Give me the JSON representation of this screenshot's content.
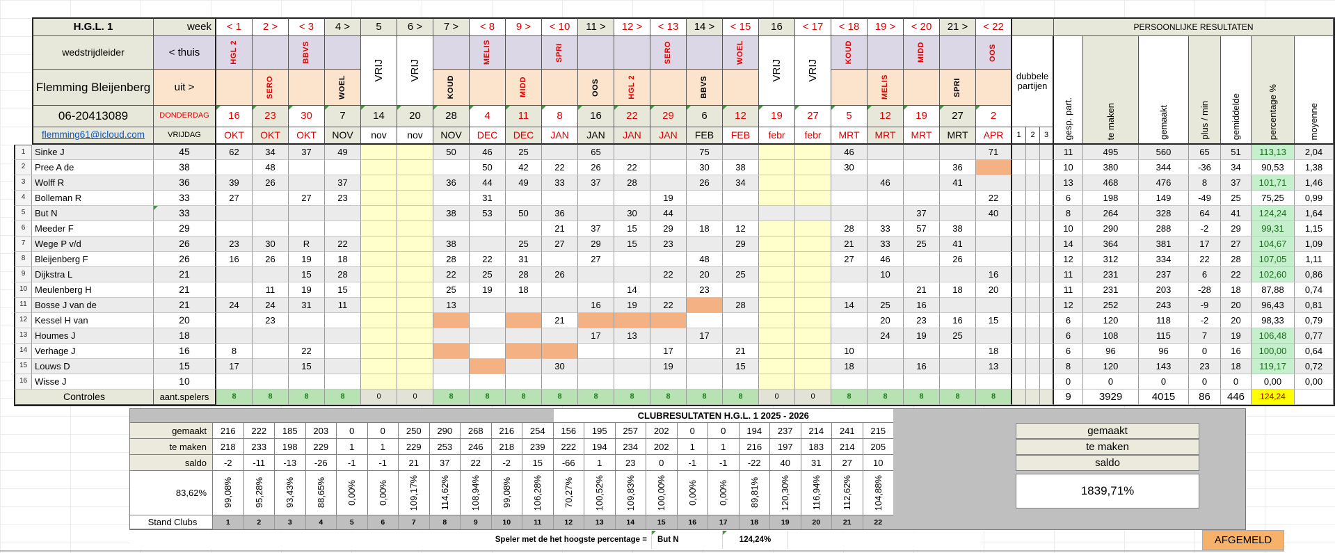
{
  "header": {
    "league": "H.G.L. 1",
    "role_label": "wedstrijdleider",
    "leader_name": "Flemming Bleijenberg",
    "phone": "06-20413089",
    "email": "flemming61@icloud.com",
    "week_label": "week",
    "home_label": "< thuis",
    "away_label": "uit >",
    "thursday_label": "DONDERDAG",
    "friday_label": "VRIJDAG",
    "vrij_label": "VRIJ",
    "personal_results_title": "PERSOONLIJKE RESULTATEN",
    "double_matches_label": "dubbele partijen",
    "double_cols": [
      "1",
      "2",
      "3"
    ],
    "result_columns": [
      "gesp. part.",
      "te maken",
      "gemaakt",
      "plus / min",
      "gemiddelde",
      "percentage %",
      "moyenne"
    ]
  },
  "colors": {
    "red_text": "#e00000",
    "beige": "#e8e8da",
    "home_lavender": "#dbd7e6",
    "away_peach": "#fbe3cc",
    "free_yellow": "#ffffcc",
    "orange_cell": "#f4b183",
    "good_green": "#c6efce",
    "control_green": "#b9e2b4",
    "total_yellow": "#ffff00",
    "grey_band": "#bfbfbf",
    "email_blue": "#0b55c4",
    "afgemeld_orange": "#f6b26b"
  },
  "weeks": [
    {
      "n": "< 1",
      "nr": true,
      "ns": false,
      "h": "HGL 2",
      "a": "",
      "cr": true,
      "v": false,
      "d": "16",
      "dr": true,
      "ds": false,
      "m": "OKT",
      "mr": true,
      "ms": false
    },
    {
      "n": "2 >",
      "nr": true,
      "ns": false,
      "h": "",
      "a": "SERO",
      "cr": true,
      "v": false,
      "d": "23",
      "dr": true,
      "ds": true,
      "m": "OKT",
      "mr": true,
      "ms": true
    },
    {
      "n": "< 3",
      "nr": true,
      "ns": false,
      "h": "BBVS",
      "a": "",
      "cr": true,
      "v": false,
      "d": "30",
      "dr": true,
      "ds": false,
      "m": "OKT",
      "mr": true,
      "ms": false
    },
    {
      "n": "4 >",
      "nr": false,
      "ns": true,
      "h": "",
      "a": "WOEL",
      "cr": false,
      "v": false,
      "d": "7",
      "dr": false,
      "ds": true,
      "m": "NOV",
      "mr": false,
      "ms": true
    },
    {
      "n": "5",
      "nr": false,
      "ns": true,
      "h": "",
      "a": "",
      "cr": false,
      "v": true,
      "d": "14",
      "dr": false,
      "ds": true,
      "m": "nov",
      "mr": false,
      "ms": false
    },
    {
      "n": "6 >",
      "nr": false,
      "ns": true,
      "h": "",
      "a": "",
      "cr": false,
      "v": true,
      "d": "20",
      "dr": false,
      "ds": true,
      "m": "nov",
      "mr": false,
      "ms": false
    },
    {
      "n": "7 >",
      "nr": false,
      "ns": true,
      "h": "",
      "a": "KOUD",
      "cr": false,
      "v": false,
      "d": "28",
      "dr": false,
      "ds": true,
      "m": "NOV",
      "mr": false,
      "ms": true
    },
    {
      "n": "< 8",
      "nr": true,
      "ns": false,
      "h": "MELIS",
      "a": "",
      "cr": true,
      "v": false,
      "d": "4",
      "dr": true,
      "ds": false,
      "m": "DEC",
      "mr": true,
      "ms": false
    },
    {
      "n": "9 >",
      "nr": true,
      "ns": false,
      "h": "",
      "a": "MIDD",
      "cr": true,
      "v": false,
      "d": "11",
      "dr": true,
      "ds": true,
      "m": "DEC",
      "mr": true,
      "ms": true
    },
    {
      "n": "< 10",
      "nr": true,
      "ns": false,
      "h": "SPRI",
      "a": "",
      "cr": true,
      "v": false,
      "d": "8",
      "dr": true,
      "ds": false,
      "m": "JAN",
      "mr": true,
      "ms": false
    },
    {
      "n": "11 >",
      "nr": false,
      "ns": true,
      "h": "",
      "a": "OOS",
      "cr": false,
      "v": false,
      "d": "16",
      "dr": false,
      "ds": true,
      "m": "JAN",
      "mr": false,
      "ms": true
    },
    {
      "n": "12 >",
      "nr": true,
      "ns": false,
      "h": "",
      "a": "HGL 2",
      "cr": true,
      "v": false,
      "d": "22",
      "dr": true,
      "ds": true,
      "m": "JAN",
      "mr": true,
      "ms": true
    },
    {
      "n": "< 13",
      "nr": true,
      "ns": false,
      "h": "SERO",
      "a": "",
      "cr": true,
      "v": false,
      "d": "29",
      "dr": true,
      "ds": true,
      "m": "JAN",
      "mr": true,
      "ms": true
    },
    {
      "n": "14 >",
      "nr": false,
      "ns": true,
      "h": "",
      "a": "BBVS",
      "cr": false,
      "v": false,
      "d": "6",
      "dr": false,
      "ds": true,
      "m": "FEB",
      "mr": false,
      "ms": true
    },
    {
      "n": "< 15",
      "nr": true,
      "ns": false,
      "h": "WOEL",
      "a": "",
      "cr": true,
      "v": false,
      "d": "12",
      "dr": true,
      "ds": true,
      "m": "FEB",
      "mr": true,
      "ms": false
    },
    {
      "n": "16",
      "nr": false,
      "ns": true,
      "h": "",
      "a": "",
      "cr": false,
      "v": true,
      "d": "19",
      "dr": true,
      "ds": false,
      "m": "febr",
      "mr": true,
      "ms": false
    },
    {
      "n": "< 17",
      "nr": true,
      "ns": false,
      "h": "",
      "a": "",
      "cr": false,
      "v": true,
      "d": "27",
      "dr": true,
      "ds": false,
      "m": "febr",
      "mr": true,
      "ms": false
    },
    {
      "n": "< 18",
      "nr": true,
      "ns": false,
      "h": "KOUD",
      "a": "",
      "cr": true,
      "v": false,
      "d": "5",
      "dr": true,
      "ds": false,
      "m": "MRT",
      "mr": true,
      "ms": false
    },
    {
      "n": "19 >",
      "nr": true,
      "ns": false,
      "h": "",
      "a": "MELIS",
      "cr": true,
      "v": false,
      "d": "12",
      "dr": true,
      "ds": true,
      "m": "MRT",
      "mr": true,
      "ms": true
    },
    {
      "n": "< 20",
      "nr": true,
      "ns": false,
      "h": "MIDD",
      "a": "",
      "cr": true,
      "v": false,
      "d": "19",
      "dr": true,
      "ds": false,
      "m": "MRT",
      "mr": true,
      "ms": false
    },
    {
      "n": "21 >",
      "nr": false,
      "ns": true,
      "h": "",
      "a": "SPRI",
      "cr": false,
      "v": false,
      "d": "27",
      "dr": false,
      "ds": true,
      "m": "MRT",
      "mr": false,
      "ms": true
    },
    {
      "n": "< 22",
      "nr": true,
      "ns": false,
      "h": "OOS",
      "a": "",
      "cr": true,
      "v": false,
      "d": "2",
      "dr": true,
      "ds": false,
      "m": "APR",
      "mr": true,
      "ms": false
    }
  ],
  "players": [
    {
      "nr": "1",
      "name": "Sinke J",
      "target": "45",
      "s": [
        "62",
        "34",
        "37",
        "49",
        "",
        "",
        "50",
        "46",
        "25",
        "",
        "65",
        "",
        "",
        "75",
        "",
        "",
        "",
        "46",
        "",
        "",
        "",
        "71"
      ],
      "o": [],
      "res": [
        "11",
        "495",
        "560",
        "65",
        "51",
        "113,13",
        "2,04"
      ],
      "good": true
    },
    {
      "nr": "2",
      "name": "Pree A de",
      "target": "38",
      "s": [
        "",
        "48",
        "",
        "",
        "",
        "",
        "",
        "50",
        "42",
        "22",
        "26",
        "22",
        "",
        "30",
        "38",
        "",
        "",
        "30",
        "",
        "",
        "36",
        ""
      ],
      "o": [
        21
      ],
      "res": [
        "10",
        "380",
        "344",
        "-36",
        "34",
        "90,53",
        "1,38"
      ],
      "good": false
    },
    {
      "nr": "3",
      "name": "Wolff R",
      "target": "36",
      "s": [
        "39",
        "26",
        "",
        "37",
        "",
        "",
        "36",
        "44",
        "49",
        "33",
        "37",
        "28",
        "",
        "26",
        "34",
        "",
        "",
        "",
        "46",
        "",
        "41",
        ""
      ],
      "o": [],
      "res": [
        "13",
        "468",
        "476",
        "8",
        "37",
        "101,71",
        "1,46"
      ],
      "good": true
    },
    {
      "nr": "4",
      "name": "Bolleman R",
      "target": "33",
      "s": [
        "27",
        "",
        "27",
        "23",
        "",
        "",
        "",
        "31",
        "",
        "",
        "",
        "",
        "19",
        "",
        "",
        "",
        "",
        "",
        "",
        "",
        "",
        "22"
      ],
      "o": [],
      "res": [
        "6",
        "198",
        "149",
        "-49",
        "25",
        "75,25",
        "0,99"
      ],
      "good": false
    },
    {
      "nr": "5",
      "name": "But N",
      "target": "33",
      "tgc": true,
      "wf": [
        15,
        16
      ],
      "s": [
        "",
        "",
        "",
        "",
        "",
        "",
        "38",
        "53",
        "50",
        "36",
        "",
        "30",
        "44",
        "",
        "",
        "",
        "",
        "",
        "",
        "37",
        "",
        "40"
      ],
      "o": [],
      "res": [
        "8",
        "264",
        "328",
        "64",
        "41",
        "124,24",
        "1,64"
      ],
      "good": true
    },
    {
      "nr": "6",
      "name": "Meeder F",
      "target": "29",
      "s": [
        "",
        "",
        "",
        "",
        "",
        "",
        "",
        "",
        "",
        "21",
        "37",
        "15",
        "29",
        "18",
        "12",
        "",
        "",
        "28",
        "33",
        "57",
        "38",
        ""
      ],
      "o": [],
      "res": [
        "10",
        "290",
        "288",
        "-2",
        "29",
        "99,31",
        "1,15"
      ],
      "good": true
    },
    {
      "nr": "7",
      "name": "Wege P v/d",
      "target": "26",
      "s": [
        "23",
        "30",
        "R",
        "22",
        "",
        "",
        "38",
        "",
        "25",
        "27",
        "29",
        "15",
        "23",
        "",
        "29",
        "",
        "",
        "21",
        "33",
        "25",
        "41",
        ""
      ],
      "o": [],
      "res": [
        "14",
        "364",
        "381",
        "17",
        "27",
        "104,67",
        "1,09"
      ],
      "good": true
    },
    {
      "nr": "8",
      "name": "Bleijenberg F",
      "target": "26",
      "s": [
        "16",
        "26",
        "19",
        "18",
        "",
        "",
        "28",
        "22",
        "31",
        "",
        "27",
        "",
        "",
        "48",
        "",
        "",
        "",
        "27",
        "46",
        "",
        "26",
        ""
      ],
      "o": [],
      "res": [
        "12",
        "312",
        "334",
        "22",
        "28",
        "107,05",
        "1,11"
      ],
      "good": true
    },
    {
      "nr": "9",
      "name": "Dijkstra L",
      "target": "21",
      "s": [
        "",
        "",
        "15",
        "28",
        "",
        "",
        "22",
        "25",
        "28",
        "26",
        "",
        "",
        "22",
        "20",
        "25",
        "",
        "",
        "",
        "10",
        "",
        "",
        "16"
      ],
      "o": [],
      "res": [
        "11",
        "231",
        "237",
        "6",
        "22",
        "102,60",
        "0,86"
      ],
      "good": true
    },
    {
      "nr": "10",
      "name": "Meulenberg H",
      "target": "21",
      "s": [
        "",
        "11",
        "19",
        "15",
        "",
        "",
        "25",
        "19",
        "18",
        "",
        "",
        "14",
        "",
        "23",
        "",
        "",
        "",
        "",
        "",
        "21",
        "18",
        "20"
      ],
      "o": [],
      "res": [
        "11",
        "231",
        "203",
        "-28",
        "18",
        "87,88",
        "0,74"
      ],
      "good": false
    },
    {
      "nr": "11",
      "name": "Bosse J van de",
      "target": "21",
      "s": [
        "24",
        "24",
        "31",
        "11",
        "",
        "",
        "13",
        "",
        "",
        "",
        "16",
        "19",
        "22",
        "",
        "28",
        "",
        "",
        "14",
        "25",
        "16",
        "",
        ""
      ],
      "o": [
        13
      ],
      "res": [
        "12",
        "252",
        "243",
        "-9",
        "20",
        "96,43",
        "0,81"
      ],
      "good": false
    },
    {
      "nr": "12",
      "name": "Kessel H van",
      "target": "20",
      "s": [
        "",
        "23",
        "",
        "",
        "",
        "",
        "",
        "",
        "",
        "21",
        "",
        "",
        "",
        "",
        "",
        "",
        "",
        "",
        "20",
        "23",
        "16",
        "15"
      ],
      "o": [
        6,
        8,
        10,
        11,
        12
      ],
      "res": [
        "6",
        "120",
        "118",
        "-2",
        "20",
        "98,33",
        "0,79"
      ],
      "good": false
    },
    {
      "nr": "13",
      "name": "Houmes J",
      "target": "18",
      "s": [
        "",
        "",
        "",
        "",
        "",
        "",
        "",
        "",
        "",
        "",
        "17",
        "13",
        "",
        "17",
        "",
        "",
        "",
        "",
        "24",
        "19",
        "25",
        ""
      ],
      "o": [],
      "res": [
        "6",
        "108",
        "115",
        "7",
        "19",
        "106,48",
        "0,77"
      ],
      "good": true
    },
    {
      "nr": "14",
      "name": "Verhage J",
      "target": "16",
      "s": [
        "8",
        "",
        "22",
        "",
        "",
        "",
        "",
        "",
        "",
        "",
        "",
        "",
        "17",
        "",
        "21",
        "",
        "",
        "10",
        "",
        "",
        "",
        "18"
      ],
      "o": [
        6,
        8,
        9
      ],
      "res": [
        "6",
        "96",
        "96",
        "0",
        "16",
        "100,00",
        "0,64"
      ],
      "good": true
    },
    {
      "nr": "15",
      "name": "Louws D",
      "target": "15",
      "s": [
        "17",
        "",
        "15",
        "",
        "",
        "",
        "",
        "",
        "",
        "30",
        "",
        "",
        "19",
        "",
        "15",
        "",
        "",
        "18",
        "",
        "16",
        "",
        "13"
      ],
      "o": [
        7
      ],
      "res": [
        "8",
        "120",
        "143",
        "23",
        "18",
        "119,17",
        "0,72"
      ],
      "good": true
    },
    {
      "nr": "16",
      "name": "Wisse J",
      "target": "10",
      "s": [
        "",
        "",
        "",
        "",
        "",
        "",
        "",
        "",
        "",
        "",
        "",
        "",
        "",
        "",
        "",
        "",
        "",
        "",
        "",
        "",
        "",
        ""
      ],
      "o": [],
      "res": [
        "0",
        "0",
        "0",
        "0",
        "0",
        "0,00",
        "0,00"
      ],
      "good": false
    }
  ],
  "controls": {
    "label": "Controles",
    "sub": "aant.spelers",
    "counts": [
      "8",
      "8",
      "8",
      "8",
      "0",
      "0",
      "8",
      "8",
      "8",
      "8",
      "8",
      "8",
      "8",
      "8",
      "8",
      "0",
      "0",
      "8",
      "8",
      "8",
      "8",
      "8"
    ],
    "totals": [
      "9",
      "3929",
      "4015",
      "86",
      "446",
      "124,24",
      ""
    ]
  },
  "clubs": {
    "title": "CLUBRESULTATEN H.G.L. 1 2025 - 2026",
    "labels": [
      "gemaakt",
      "te maken",
      "saldo"
    ],
    "gemaakt": [
      "216",
      "222",
      "185",
      "203",
      "0",
      "0",
      "250",
      "290",
      "268",
      "216",
      "254",
      "156",
      "195",
      "257",
      "202",
      "0",
      "0",
      "194",
      "237",
      "214",
      "241",
      "215"
    ],
    "temaken": [
      "218",
      "233",
      "198",
      "229",
      "1",
      "1",
      "229",
      "253",
      "246",
      "218",
      "239",
      "222",
      "194",
      "234",
      "202",
      "1",
      "1",
      "216",
      "197",
      "183",
      "214",
      "205"
    ],
    "saldo": [
      "-2",
      "-11",
      "-13",
      "-26",
      "-1",
      "-1",
      "21",
      "37",
      "22",
      "-2",
      "15",
      "-66",
      "1",
      "23",
      "0",
      "-1",
      "-1",
      "-22",
      "40",
      "31",
      "27",
      "10"
    ],
    "totalpct": "83,62%",
    "pct": [
      "99,08%",
      "95,28%",
      "93,43%",
      "88,65%",
      "0,00%",
      "0,00%",
      "109,17%",
      "114,62%",
      "108,94%",
      "99,08%",
      "106,28%",
      "70,27%",
      "100,52%",
      "109,83%",
      "100,00%",
      "0,00%",
      "0,00%",
      "89,81%",
      "120,30%",
      "116,94%",
      "112,62%",
      "104,88%"
    ],
    "standlabel": "Stand Clubs",
    "stand": [
      "1",
      "2",
      "3",
      "4",
      "5",
      "6",
      "7",
      "8",
      "9",
      "10",
      "11",
      "12",
      "13",
      "14",
      "15",
      "16",
      "17",
      "18",
      "19",
      "20",
      "21",
      "22"
    ],
    "right_total": "1839,71%"
  },
  "footer": {
    "note": "Speler met de het hoogste percentage =",
    "best": "But N",
    "bestpct": "124,24%",
    "afgemeld": "AFGEMELD"
  }
}
